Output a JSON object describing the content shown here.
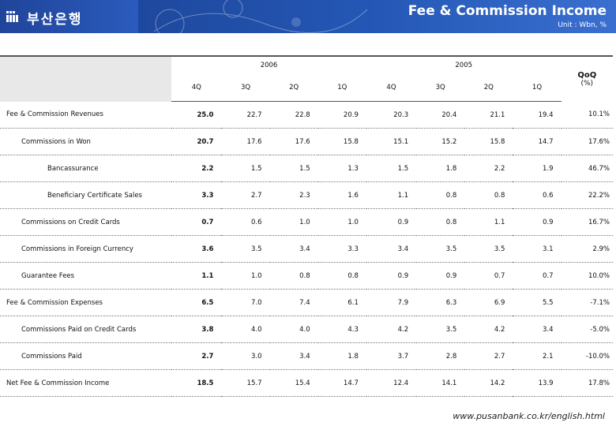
{
  "header": {
    "brand": "부산은행",
    "title": "Fee & Commission Income",
    "unit": "Unit : Wbn, %"
  },
  "table": {
    "years": [
      "2006",
      "2005"
    ],
    "quarters_2006": [
      "4Q",
      "3Q",
      "2Q",
      "1Q"
    ],
    "quarters_2005": [
      "4Q",
      "3Q",
      "2Q",
      "1Q"
    ],
    "qoq_label": "QoQ",
    "qoq_unit": "(%)",
    "rows": [
      {
        "label": "Fee & Commission Revenues",
        "level": 0,
        "values": [
          "25.0",
          "22.7",
          "22.8",
          "20.9",
          "20.3",
          "20.4",
          "21.1",
          "19.4"
        ],
        "qoq": "10.1%"
      },
      {
        "label": "Commissions in Won",
        "level": 1,
        "values": [
          "20.7",
          "17.6",
          "17.6",
          "15.8",
          "15.1",
          "15.2",
          "15.8",
          "14.7"
        ],
        "qoq": "17.6%"
      },
      {
        "label": "Bancassurance",
        "level": 2,
        "values": [
          "2.2",
          "1.5",
          "1.5",
          "1.3",
          "1.5",
          "1.8",
          "2.2",
          "1.9"
        ],
        "qoq": "46.7%"
      },
      {
        "label": "Beneficiary Certificate Sales",
        "level": 2,
        "values": [
          "3.3",
          "2.7",
          "2.3",
          "1.6",
          "1.1",
          "0.8",
          "0.8",
          "0.6"
        ],
        "qoq": "22.2%"
      },
      {
        "label": "Commissions on Credit Cards",
        "level": 1,
        "values": [
          "0.7",
          "0.6",
          "1.0",
          "1.0",
          "0.9",
          "0.8",
          "1.1",
          "0.9"
        ],
        "qoq": "16.7%"
      },
      {
        "label": "Commissions in Foreign Currency",
        "level": 1,
        "values": [
          "3.6",
          "3.5",
          "3.4",
          "3.3",
          "3.4",
          "3.5",
          "3.5",
          "3.1"
        ],
        "qoq": "2.9%"
      },
      {
        "label": "Guarantee Fees",
        "level": 1,
        "values": [
          "1.1",
          "1.0",
          "0.8",
          "0.8",
          "0.9",
          "0.9",
          "0.7",
          "0.7"
        ],
        "qoq": "10.0%"
      },
      {
        "label": "Fee & Commission Expenses",
        "level": 0,
        "values": [
          "6.5",
          "7.0",
          "7.4",
          "6.1",
          "7.9",
          "6.3",
          "6.9",
          "5.5"
        ],
        "qoq": "-7.1%"
      },
      {
        "label": "Commissions Paid on Credit Cards",
        "level": 1,
        "values": [
          "3.8",
          "4.0",
          "4.0",
          "4.3",
          "4.2",
          "3.5",
          "4.2",
          "3.4"
        ],
        "qoq": "-5.0%"
      },
      {
        "label": "Commissions Paid",
        "level": 1,
        "values": [
          "2.7",
          "3.0",
          "3.4",
          "1.8",
          "3.7",
          "2.8",
          "2.7",
          "2.1"
        ],
        "qoq": "-10.0%"
      },
      {
        "label": "Net Fee & Commission Income",
        "level": 0,
        "values": [
          "18.5",
          "15.7",
          "15.4",
          "14.7",
          "12.4",
          "14.1",
          "14.2",
          "13.9"
        ],
        "qoq": "17.8%"
      }
    ]
  },
  "footer": {
    "url": "www.pusanbank.co.kr/english.html"
  }
}
